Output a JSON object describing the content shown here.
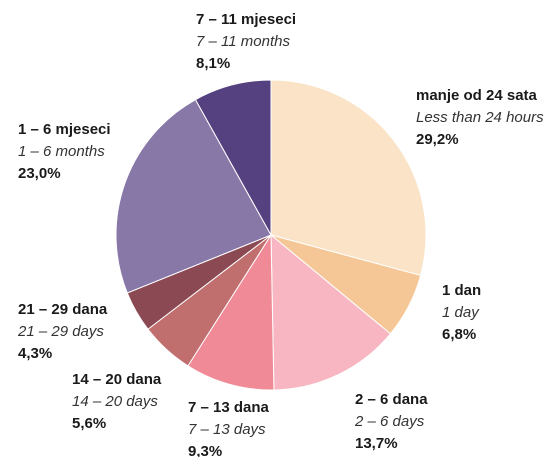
{
  "chart_data": {
    "type": "pie",
    "categories": [
      "manje od 24 sata",
      "1 dan",
      "2 – 6 dana",
      "7 – 13 dana",
      "14 – 20 dana",
      "21 – 29 dana",
      "1 – 6 mjeseci",
      "7 – 11 mjeseci"
    ],
    "categories_en": [
      "Less than 24 hours",
      "1 day",
      "2 – 6 days",
      "7 – 13 days",
      "14 – 20 days",
      "21 – 29 days",
      "1 – 6 months",
      "7 – 11 months"
    ],
    "values": [
      29.2,
      6.8,
      13.7,
      9.3,
      5.6,
      4.3,
      23.0,
      8.1
    ],
    "value_labels": [
      "29,2%",
      "6,8%",
      "13,7%",
      "9,3%",
      "5,6%",
      "4,3%",
      "23,0%",
      "8,1%"
    ],
    "colors": [
      "#fae3c6",
      "#f5c796",
      "#f7b6c2",
      "#f08a96",
      "#c06e6e",
      "#8b4a53",
      "#8878a8",
      "#55417f"
    ]
  }
}
